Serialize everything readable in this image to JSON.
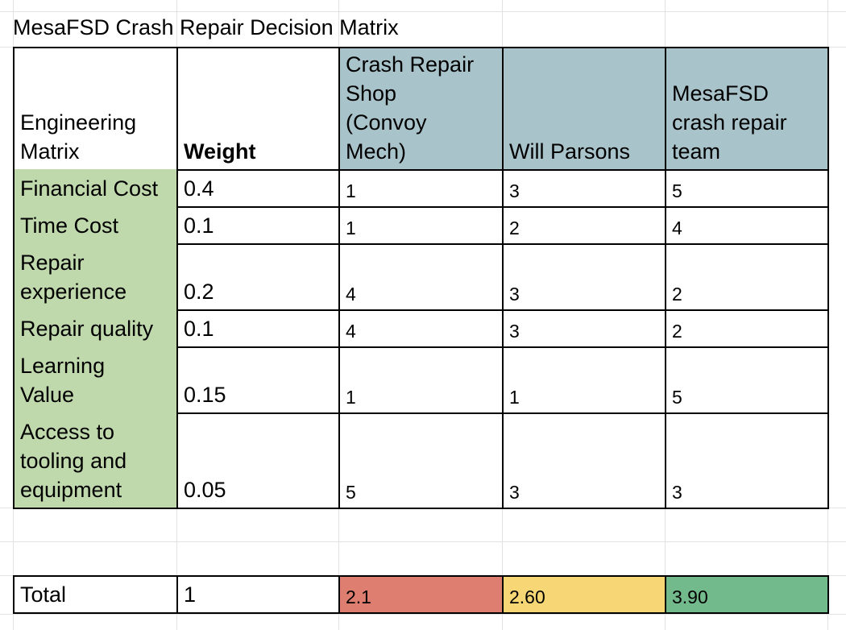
{
  "sheet": {
    "title": "MesaFSD Crash Repair Decision Matrix",
    "header": {
      "row_label": "Engineering\nMatrix",
      "weight_label": "Weight",
      "options": [
        "Crash Repair\nShop\n(Convoy\nMech)",
        "Will Parsons",
        "MesaFSD\ncrash repair\nteam"
      ]
    },
    "rows": [
      {
        "criterion": "Financial Cost",
        "weight": "0.4",
        "scores": [
          "1",
          "3",
          "5"
        ]
      },
      {
        "criterion": "Time Cost",
        "weight": "0.1",
        "scores": [
          "1",
          "2",
          "4"
        ]
      },
      {
        "criterion": "Repair\nexperience",
        "weight": "0.2",
        "scores": [
          "4",
          "3",
          "2"
        ]
      },
      {
        "criterion": "Repair quality",
        "weight": "0.1",
        "scores": [
          "4",
          "3",
          "2"
        ]
      },
      {
        "criterion": "Learning\nValue",
        "weight": "0.15",
        "scores": [
          "1",
          "1",
          "5"
        ]
      },
      {
        "criterion": "Access to\ntooling and\nequipment",
        "weight": "0.05",
        "scores": [
          "5",
          "3",
          "3"
        ]
      }
    ],
    "total": {
      "label": "Total",
      "weight": "1",
      "scores": [
        "2.1",
        "2.60",
        "3.90"
      ]
    },
    "colors": {
      "criteria_fill": "#bfd9ad",
      "header_fill": "#a9c3cb",
      "total_low": "#dd7e70",
      "total_mid": "#f7d775",
      "total_high": "#72b98c"
    }
  }
}
